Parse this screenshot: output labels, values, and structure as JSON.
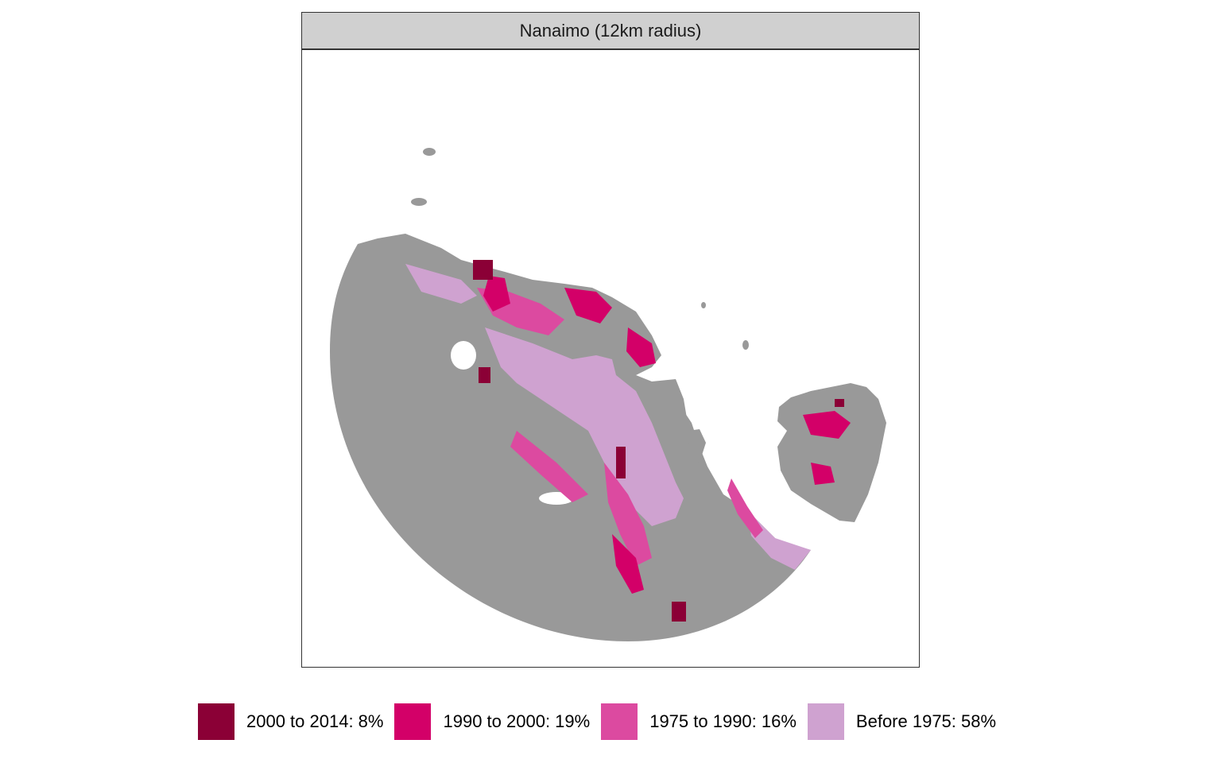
{
  "facet": {
    "title": "Nanaimo (12km radius)"
  },
  "map": {
    "land_color": "#999999",
    "water_color": "#ffffff"
  },
  "legend": {
    "items": [
      {
        "label": "2000 to 2014: 8%",
        "color": "#8b0036",
        "percent": 8
      },
      {
        "label": "1990 to 2000: 19%",
        "color": "#d30068",
        "percent": 19
      },
      {
        "label": "1975 to 1990: 16%",
        "color": "#dc4aa0",
        "percent": 16
      },
      {
        "label": "Before 1975: 58%",
        "color": "#cfa2d0",
        "percent": 58
      }
    ]
  }
}
